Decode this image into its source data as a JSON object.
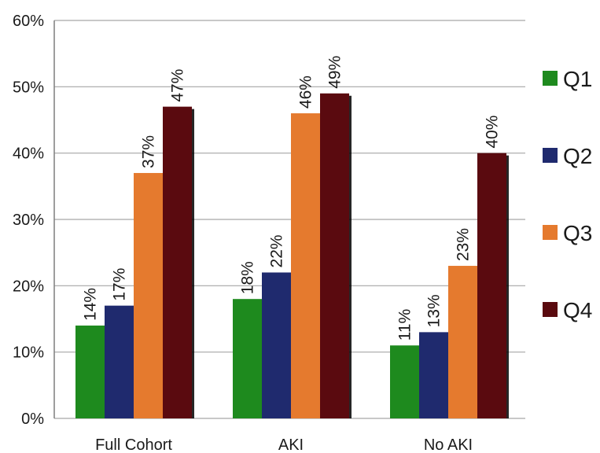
{
  "chart_data": {
    "type": "bar",
    "title": "",
    "xlabel": "",
    "ylabel": "",
    "ylim": [
      0,
      60
    ],
    "yticks": [
      0,
      10,
      20,
      30,
      40,
      50,
      60
    ],
    "ytick_labels": [
      "0%",
      "10%",
      "20%",
      "30%",
      "40%",
      "50%",
      "60%"
    ],
    "categories": [
      "Full Cohort",
      "AKI",
      "No AKI"
    ],
    "series": [
      {
        "name": "Q1",
        "color": "#1e8a1e",
        "values": [
          14,
          18,
          11
        ],
        "labels": [
          "14%",
          "18%",
          "11%"
        ]
      },
      {
        "name": "Q2",
        "color": "#1f2a6e",
        "values": [
          17,
          22,
          13
        ],
        "labels": [
          "17%",
          "22%",
          "13%"
        ]
      },
      {
        "name": "Q3",
        "color": "#e57a2e",
        "values": [
          37,
          46,
          23
        ],
        "labels": [
          "37%",
          "46%",
          "23%"
        ]
      },
      {
        "name": "Q4",
        "color": "#5a0a0f",
        "values": [
          47,
          49,
          40
        ],
        "labels": [
          "47%",
          "49%",
          "40%"
        ]
      }
    ],
    "grid": true,
    "legend": "right"
  }
}
